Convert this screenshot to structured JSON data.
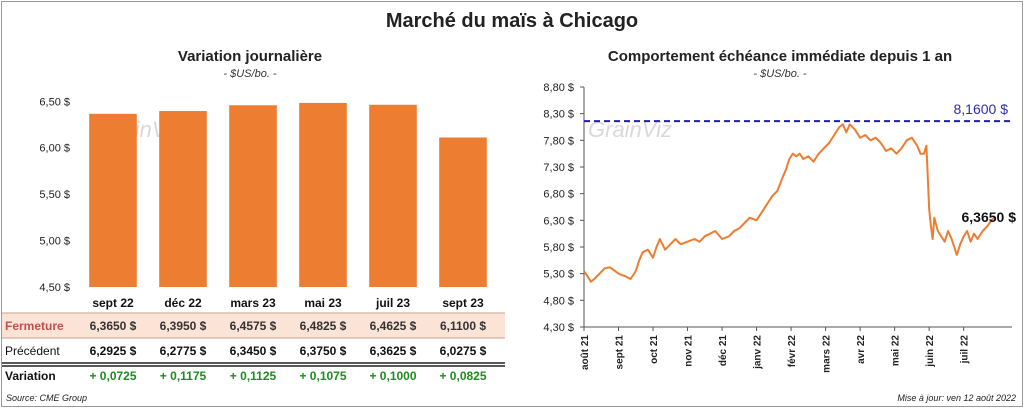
{
  "title": "Marché du maïs à Chicago",
  "source": "Source: CME Group",
  "updated": "Mise à jour: ven 12 août 2022",
  "watermark": "GrainViz",
  "colors": {
    "bar": "#ED7D31",
    "line": "#ED7D31",
    "ref": "#1F1FB4",
    "ref_label": "#2E2EAA",
    "positive": "#1E8C1E",
    "fermeture_bg": "#FBE3D6",
    "fermeture_text": "#C0504D"
  },
  "chart_data": [
    {
      "type": "bar",
      "title": "Variation journalière",
      "unit": "- $US/bo. -",
      "categories": [
        "sept 22",
        "déc 22",
        "mars 23",
        "mai 23",
        "juil 23",
        "sept 23"
      ],
      "values": [
        6.365,
        6.395,
        6.4575,
        6.4825,
        6.4625,
        6.11
      ],
      "ylim": [
        4.5,
        6.6
      ],
      "yticks": [
        4.5,
        5.0,
        5.5,
        6.0,
        6.5
      ],
      "ytick_labels": [
        "4,50 $",
        "5,00 $",
        "5,50 $",
        "6,00 $",
        "6,50 $"
      ],
      "table": {
        "rows": [
          {
            "label": "Fermeture",
            "cells": [
              "6,3650  $",
              "6,3950  $",
              "6,4575  $",
              "6,4825  $",
              "6,4625  $",
              "6,1100  $"
            ]
          },
          {
            "label": "Précédent",
            "cells": [
              "6,2925  $",
              "6,2775  $",
              "6,3450  $",
              "6,3750  $",
              "6,3625  $",
              "6,0275  $"
            ]
          },
          {
            "label": "Variation",
            "cells": [
              "+ 0,0725",
              "+ 0,1175",
              "+ 0,1125",
              "+ 0,1075",
              "+ 0,1000",
              "+ 0,0825"
            ]
          }
        ]
      }
    },
    {
      "type": "line",
      "title": "Comportement  échéance immédiate depuis 1 an",
      "unit": "- $US/bo. -",
      "ylim": [
        4.3,
        8.8
      ],
      "yticks": [
        4.3,
        4.8,
        5.3,
        5.8,
        6.3,
        6.8,
        7.3,
        7.8,
        8.3,
        8.8
      ],
      "ytick_labels": [
        "4,30 $",
        "4,80 $",
        "5,30 $",
        "5,80 $",
        "6,30 $",
        "6,80 $",
        "7,30 $",
        "7,80 $",
        "8,30 $",
        "8,80 $"
      ],
      "xlim": [
        0,
        12.4
      ],
      "xticks": [
        0,
        1,
        2,
        3,
        4,
        5,
        6,
        7,
        8,
        9,
        10,
        11
      ],
      "xtick_labels": [
        "août 21",
        "sept 21",
        "oct 21",
        "nov 21",
        "déc 21",
        "janv 22",
        "févr 22",
        "mars 22",
        "avr 22",
        "mai 22",
        "juin 22",
        "juil 22"
      ],
      "reference": {
        "value": 8.16,
        "label": "8,1600 $"
      },
      "last": {
        "value": 6.365,
        "label": "6,3650 $"
      },
      "x": [
        0,
        0.1,
        0.2,
        0.3,
        0.45,
        0.6,
        0.75,
        0.9,
        1.0,
        1.2,
        1.35,
        1.5,
        1.6,
        1.7,
        1.85,
        2.0,
        2.1,
        2.2,
        2.35,
        2.5,
        2.65,
        2.8,
        3.0,
        3.2,
        3.35,
        3.5,
        3.65,
        3.8,
        4.0,
        4.2,
        4.35,
        4.5,
        4.65,
        4.8,
        5.0,
        5.15,
        5.3,
        5.45,
        5.6,
        5.75,
        5.85,
        5.95,
        6.05,
        6.15,
        6.25,
        6.35,
        6.5,
        6.65,
        6.8,
        6.95,
        7.1,
        7.25,
        7.4,
        7.5,
        7.6,
        7.7,
        7.85,
        8.0,
        8.15,
        8.3,
        8.45,
        8.6,
        8.75,
        8.9,
        9.05,
        9.2,
        9.35,
        9.5,
        9.65,
        9.75,
        9.85,
        9.92,
        10.0,
        10.05,
        10.1,
        10.15,
        10.25,
        10.35,
        10.45,
        10.55,
        10.65,
        10.8,
        10.9,
        11.0,
        11.1,
        11.2,
        11.3,
        11.4,
        11.55,
        11.7,
        11.8,
        11.9
      ],
      "y": [
        5.35,
        5.25,
        5.15,
        5.2,
        5.3,
        5.4,
        5.42,
        5.35,
        5.3,
        5.25,
        5.2,
        5.35,
        5.55,
        5.7,
        5.75,
        5.6,
        5.8,
        5.95,
        5.75,
        5.85,
        5.95,
        5.85,
        5.9,
        5.95,
        5.9,
        6.0,
        6.05,
        6.1,
        5.95,
        6.0,
        6.1,
        6.15,
        6.25,
        6.35,
        6.3,
        6.45,
        6.6,
        6.75,
        6.85,
        7.1,
        7.25,
        7.45,
        7.55,
        7.5,
        7.55,
        7.45,
        7.5,
        7.4,
        7.55,
        7.65,
        7.75,
        7.9,
        8.05,
        8.1,
        7.95,
        8.1,
        8.0,
        7.85,
        7.9,
        7.8,
        7.85,
        7.75,
        7.6,
        7.65,
        7.55,
        7.65,
        7.8,
        7.85,
        7.7,
        7.55,
        7.55,
        7.7,
        6.5,
        6.2,
        5.95,
        6.35,
        6.1,
        6.0,
        5.9,
        6.1,
        5.95,
        5.65,
        5.85,
        6.0,
        6.1,
        5.9,
        6.05,
        5.95,
        6.1,
        6.2,
        6.3,
        6.365
      ]
    }
  ]
}
